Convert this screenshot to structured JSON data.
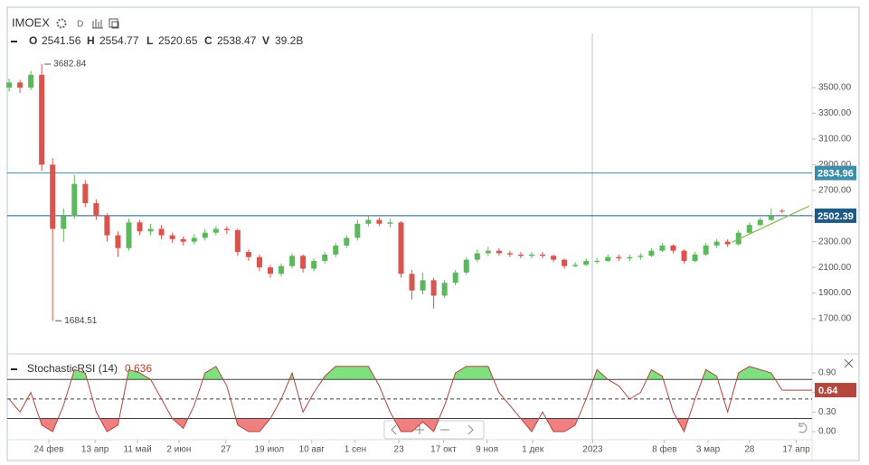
{
  "header": {
    "symbol": "IMOEX",
    "interval": "D",
    "ohlc_labels": [
      "O",
      "H",
      "L",
      "C",
      "V"
    ],
    "volume": "39.2B"
  },
  "chart_data": [
    {
      "type": "candlestick",
      "open": [
        3500,
        3540,
        3500,
        3600,
        2900,
        2400,
        2500,
        2750,
        2600,
        2500,
        2350,
        2250,
        2450,
        2380,
        2400,
        2350,
        2320,
        2300,
        2330,
        2370,
        2400,
        2390,
        2220,
        2180,
        2100,
        2050,
        2110,
        2190,
        2090,
        2150,
        2200,
        2270,
        2330,
        2440,
        2470,
        2440,
        2450,
        2050,
        1920,
        2000,
        1880,
        1980,
        2060,
        2160,
        2210,
        2230,
        2210,
        2200,
        2190,
        2200,
        2190,
        2160,
        2110,
        2120,
        2150,
        2150,
        2180,
        2170,
        2180,
        2190,
        2230,
        2270,
        2230,
        2150,
        2200,
        2270,
        2300,
        2280,
        2370,
        2430,
        2470,
        2541.56
      ],
      "high": [
        3570,
        3560,
        3630,
        3682.84,
        2950,
        2560,
        2820,
        2780,
        2630,
        2520,
        2380,
        2480,
        2470,
        2440,
        2430,
        2370,
        2340,
        2360,
        2400,
        2420,
        2420,
        2400,
        2240,
        2200,
        2120,
        2130,
        2210,
        2200,
        2170,
        2220,
        2290,
        2350,
        2470,
        2500,
        2490,
        2480,
        2460,
        2080,
        2060,
        2020,
        2000,
        2080,
        2180,
        2240,
        2260,
        2250,
        2230,
        2220,
        2220,
        2220,
        2200,
        2170,
        2140,
        2170,
        2170,
        2200,
        2200,
        2200,
        2210,
        2250,
        2290,
        2280,
        2240,
        2220,
        2290,
        2320,
        2320,
        2390,
        2450,
        2490,
        2560,
        2554.77
      ],
      "low": [
        3470,
        3460,
        3480,
        2850,
        1684.51,
        2300,
        2480,
        2570,
        2470,
        2300,
        2180,
        2230,
        2350,
        2350,
        2320,
        2290,
        2270,
        2280,
        2310,
        2350,
        2360,
        2190,
        2150,
        2070,
        2020,
        2030,
        2090,
        2060,
        2070,
        2130,
        2180,
        2250,
        2310,
        2420,
        2420,
        2410,
        2020,
        1850,
        1890,
        1780,
        1860,
        1960,
        2040,
        2140,
        2190,
        2190,
        2180,
        2170,
        2170,
        2170,
        2140,
        2090,
        2100,
        2110,
        2130,
        2140,
        2150,
        2150,
        2160,
        2180,
        2220,
        2210,
        2130,
        2140,
        2190,
        2250,
        2260,
        2270,
        2360,
        2420,
        2460,
        2520.65
      ],
      "close": [
        3540,
        3500,
        3600,
        2900,
        2400,
        2500,
        2750,
        2600,
        2500,
        2350,
        2250,
        2450,
        2380,
        2400,
        2350,
        2320,
        2300,
        2330,
        2370,
        2400,
        2390,
        2220,
        2180,
        2100,
        2050,
        2110,
        2190,
        2090,
        2150,
        2200,
        2270,
        2330,
        2440,
        2470,
        2440,
        2450,
        2050,
        1920,
        2000,
        1880,
        1980,
        2060,
        2160,
        2210,
        2230,
        2210,
        2200,
        2190,
        2200,
        2190,
        2160,
        2110,
        2120,
        2150,
        2150,
        2180,
        2170,
        2180,
        2190,
        2230,
        2270,
        2230,
        2150,
        2200,
        2270,
        2300,
        2280,
        2370,
        2430,
        2470,
        2500,
        2538.47
      ],
      "up_color": "#5cb85c",
      "down_color": "#d9534f",
      "xlim": [
        -0.17,
        73.75
      ],
      "xticks": [
        {
          "value": 3.65,
          "label": "24 фев"
        },
        {
          "value": 7.9,
          "label": "13 апр"
        },
        {
          "value": 11.8,
          "label": "11 май"
        },
        {
          "value": 15.6,
          "label": "2 июн"
        },
        {
          "value": 19.9,
          "label": "27"
        },
        {
          "value": 23.9,
          "label": "19 июл"
        },
        {
          "value": 27.8,
          "label": "10 авг"
        },
        {
          "value": 31.8,
          "label": "1 сен"
        },
        {
          "value": 35.8,
          "label": "23"
        },
        {
          "value": 39.9,
          "label": "17 окт"
        },
        {
          "value": 43.9,
          "label": "9 ноя"
        },
        {
          "value": 48.1,
          "label": "1 дек"
        },
        {
          "value": 53.6,
          "label": "2023"
        },
        {
          "value": 60.2,
          "label": "8 фев"
        },
        {
          "value": 64.2,
          "label": "3 мар"
        },
        {
          "value": 68.0,
          "label": "28"
        },
        {
          "value": 72.3,
          "label": "17 апр"
        }
      ],
      "ylim": [
        1440,
        3922
      ],
      "yticks": [
        {
          "value": 1700,
          "label": "1700.00"
        },
        {
          "value": 1900,
          "label": "1900.00"
        },
        {
          "value": 2100,
          "label": "2100.00"
        },
        {
          "value": 2300,
          "label": "2300.00"
        },
        {
          "value": 2500,
          "label": "2500.00"
        },
        {
          "value": 2700,
          "label": "2700.00"
        },
        {
          "value": 2900,
          "label": "2900.00"
        },
        {
          "value": 3100,
          "label": "3100.00"
        },
        {
          "value": 3300,
          "label": "3300.00"
        },
        {
          "value": 3500,
          "label": "3500.00"
        }
      ],
      "price_lines": [
        {
          "value": 2834.96,
          "color": "#3d8ea9"
        },
        {
          "value": 2502.39,
          "color": "#1d5a86"
        }
      ],
      "trendline": {
        "x": [
          66.4,
          73.5
        ],
        "values": [
          2296,
          2578
        ],
        "color": "#8bbf5a"
      }
    },
    {
      "type": "line",
      "name": "StochasticRSI (14)",
      "color": "#b5463c",
      "values": [
        0.5,
        0.3,
        0.6,
        0.1,
        0.0,
        0.4,
        0.95,
        0.9,
        0.3,
        0.0,
        0.1,
        0.95,
        0.9,
        0.8,
        0.5,
        0.2,
        0.05,
        0.4,
        0.9,
        1.0,
        0.7,
        0.1,
        0.0,
        0.0,
        0.2,
        0.5,
        0.9,
        0.3,
        0.6,
        0.85,
        1.0,
        1.0,
        1.0,
        1.0,
        0.7,
        0.3,
        0.0,
        0.0,
        0.15,
        0.0,
        0.4,
        0.9,
        1.0,
        1.0,
        1.0,
        0.6,
        0.4,
        0.2,
        0.0,
        0.3,
        0.0,
        0.0,
        0.1,
        0.5,
        0.95,
        0.8,
        0.7,
        0.5,
        0.6,
        0.95,
        0.85,
        0.3,
        0.0,
        0.5,
        0.95,
        0.85,
        0.3,
        0.9,
        1.0,
        0.95,
        0.9,
        0.636
      ],
      "last_value_label": "0.64",
      "levels": [
        0.8,
        0.5,
        0.2
      ],
      "upper_fill": "#7ee07e",
      "lower_fill": "#f08080",
      "ylim": [
        -0.097,
        1.08
      ],
      "yticks": [
        {
          "value": 0.9,
          "label": "0.90"
        },
        {
          "value": 0.6,
          "label": "0.60"
        },
        {
          "value": 0.3,
          "label": "0.30"
        },
        {
          "value": 0,
          "label": "0.00"
        }
      ]
    }
  ]
}
